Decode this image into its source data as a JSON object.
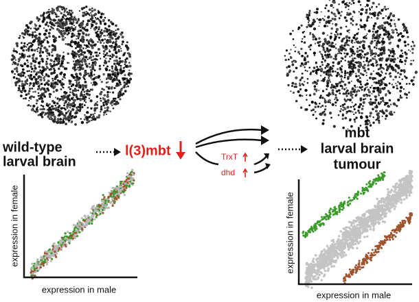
{
  "left": {
    "label_lines": [
      "wild-type",
      "larval brain"
    ],
    "plot": {
      "y_label": "expression in female",
      "x_label": "expression in male"
    }
  },
  "center": {
    "gene": "l(3)mbt",
    "targets": [
      "TrxT",
      "dhd"
    ]
  },
  "right": {
    "label_lines": [
      "mbt",
      "larval brain",
      "tumour"
    ],
    "plot": {
      "y_label": "expression in female",
      "x_label": "expression in male"
    }
  }
}
